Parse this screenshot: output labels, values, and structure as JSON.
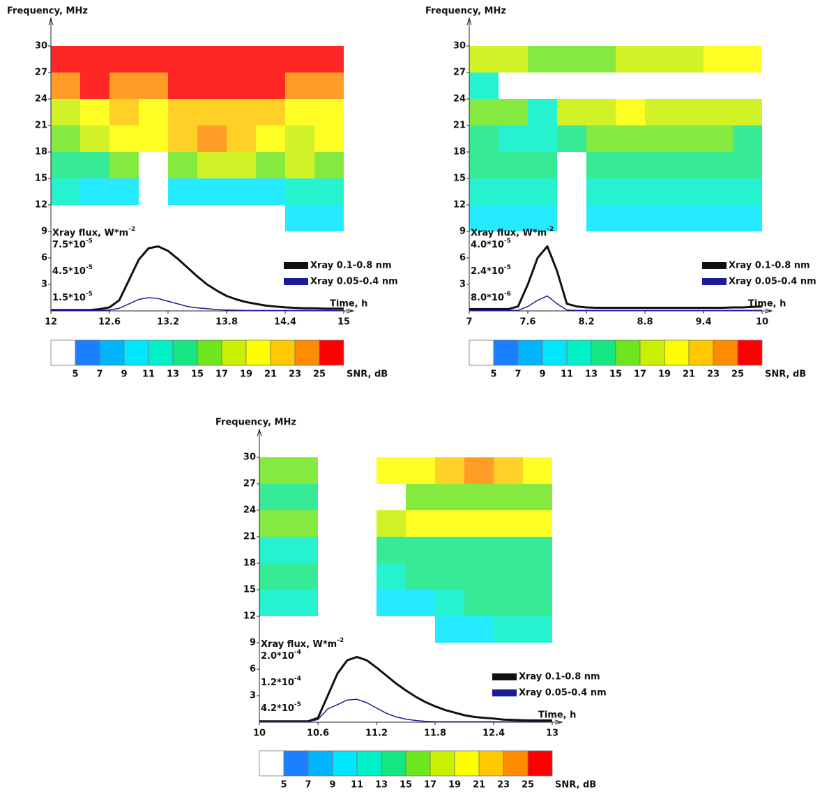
{
  "chart_data": [
    {
      "type": "spectrogram",
      "y_label": "Frequency, MHz",
      "x_label": "Time, h",
      "flux_label": "Xray flux, W*m",
      "flux_label_exponent": "-2",
      "xlim": [
        12,
        15
      ],
      "xticks": [
        12,
        12.6,
        13.2,
        13.8,
        14.4,
        15
      ],
      "ylim": [
        0,
        30
      ],
      "yticks": [
        3,
        6,
        9,
        12,
        15,
        18,
        21,
        24,
        27,
        30
      ],
      "y2lim": [
        0,
        0.0003
      ],
      "y2ticks": [
        {
          "value": 7.5e-05,
          "label": "7.5*10",
          "exponent": "-5"
        },
        {
          "value": 4.5e-05,
          "label": "4.5*10",
          "exponent": "-5"
        },
        {
          "value": 1.5e-05,
          "label": "1.5*10",
          "exponent": "-5"
        }
      ],
      "time_bins": [
        12,
        12.3,
        12.6,
        12.9,
        13.2,
        13.5,
        13.8,
        14.1,
        14.4,
        14.7,
        15
      ],
      "freq_bins": [
        9,
        12,
        15,
        18,
        21,
        24,
        27,
        30
      ],
      "z": [
        [
          null,
          null,
          null,
          null,
          null,
          null,
          null,
          null,
          9,
          9
        ],
        [
          11,
          9,
          9,
          null,
          9,
          9,
          9,
          9,
          11,
          11
        ],
        [
          13,
          13,
          15,
          null,
          15,
          17,
          17,
          15,
          17,
          15
        ],
        [
          15,
          17,
          19,
          19,
          21,
          23,
          21,
          19,
          17,
          19
        ],
        [
          17,
          19,
          21,
          19,
          21,
          21,
          21,
          21,
          19,
          19
        ],
        [
          23,
          25,
          23,
          23,
          25,
          25,
          25,
          25,
          23,
          23
        ],
        [
          25,
          25,
          25,
          25,
          25,
          25,
          25,
          25,
          25,
          25
        ]
      ],
      "x": [
        12,
        12.1,
        12.2,
        12.3,
        12.4,
        12.5,
        12.6,
        12.7,
        12.8,
        12.9,
        13,
        13.1,
        13.2,
        13.3,
        13.4,
        13.5,
        13.6,
        13.7,
        13.8,
        13.9,
        14,
        14.1,
        14.2,
        14.3,
        14.4,
        14.5,
        14.6,
        14.7,
        14.8,
        14.9,
        15
      ],
      "series": [
        {
          "name": "Xray 0.1-0.8 nm",
          "color": "#111111",
          "axis": "y2",
          "values": [
            1e-06,
            1e-06,
            1e-06,
            1e-06,
            1e-06,
            2e-06,
            4e-06,
            1.2e-05,
            3.5e-05,
            5.8e-05,
            7.1e-05,
            7.3e-05,
            6.8e-05,
            5.9e-05,
            4.9e-05,
            3.9e-05,
            3e-05,
            2.3e-05,
            1.7e-05,
            1.3e-05,
            1e-05,
            8e-06,
            6e-06,
            5e-06,
            4e-06,
            3.5e-06,
            3e-06,
            3e-06,
            2.5e-06,
            2.5e-06,
            2.5e-06
          ]
        },
        {
          "name": "Xray 0.05-0.4 nm",
          "color": "#1c1c96",
          "axis": "y2",
          "values": [
            5e-07,
            5e-07,
            5e-07,
            5e-07,
            5e-07,
            5e-07,
            1e-06,
            3e-06,
            8e-06,
            1.3e-05,
            1.5e-05,
            1.4e-05,
            1.1e-05,
            8e-06,
            5e-06,
            3.5e-06,
            2.5e-06,
            1.5e-06,
            1e-06,
            8e-07,
            5e-07,
            5e-07,
            5e-07,
            5e-07,
            5e-07,
            5e-07,
            5e-07,
            5e-07,
            5e-07,
            5e-07,
            5e-07
          ]
        }
      ],
      "colorbar_levels": [
        5,
        7,
        9,
        11,
        13,
        15,
        17,
        19,
        21,
        23,
        25
      ],
      "colorbar_colors": [
        "#ffffff",
        "#1a80ff",
        "#00b4ff",
        "#00e6ff",
        "#00f0c8",
        "#14e682",
        "#6ee61e",
        "#c8f000",
        "#ffff00",
        "#ffc800",
        "#ff8c00",
        "#ff0000"
      ],
      "colorbar_label": "SNR, dB"
    },
    {
      "type": "spectrogram",
      "y_label": "Frequency, MHz",
      "x_label": "Time, h",
      "flux_label": "Xray flux, W*m",
      "flux_label_exponent": "-2",
      "xlim": [
        7,
        10
      ],
      "xticks": [
        7,
        7.6,
        8.2,
        8.8,
        9.4,
        10
      ],
      "ylim": [
        0,
        30
      ],
      "yticks": [
        3,
        6,
        9,
        12,
        15,
        18,
        21,
        24,
        27,
        30
      ],
      "y2lim": [
        0,
        0.00016
      ],
      "y2ticks": [
        {
          "value": 4e-05,
          "label": "4.0*10",
          "exponent": "-5"
        },
        {
          "value": 2.4e-05,
          "label": "2.4*10",
          "exponent": "-5"
        },
        {
          "value": 8e-06,
          "label": "8.0*10",
          "exponent": "-6"
        }
      ],
      "time_bins": [
        7,
        7.3,
        7.6,
        7.9,
        8.2,
        8.5,
        8.8,
        9.1,
        9.4,
        9.7,
        10
      ],
      "freq_bins": [
        9,
        12,
        15,
        18,
        21,
        24,
        27,
        30
      ],
      "z": [
        [
          9,
          9,
          9,
          null,
          9,
          9,
          9,
          9,
          9,
          9
        ],
        [
          11,
          11,
          11,
          null,
          11,
          11,
          11,
          11,
          11,
          11
        ],
        [
          13,
          13,
          13,
          null,
          13,
          13,
          13,
          13,
          13,
          13
        ],
        [
          13,
          11,
          11,
          13,
          15,
          15,
          15,
          15,
          15,
          13
        ],
        [
          15,
          15,
          11,
          17,
          17,
          19,
          17,
          17,
          17,
          17
        ],
        [
          11,
          null,
          null,
          null,
          null,
          null,
          null,
          null,
          null,
          null
        ],
        [
          17,
          17,
          15,
          15,
          15,
          17,
          17,
          17,
          19,
          19
        ]
      ],
      "x": [
        7,
        7.1,
        7.2,
        7.3,
        7.4,
        7.5,
        7.6,
        7.7,
        7.8,
        7.9,
        8,
        8.1,
        8.2,
        8.3,
        8.4,
        8.5,
        8.6,
        8.7,
        8.8,
        8.9,
        9,
        9.1,
        9.2,
        9.3,
        9.4,
        9.5,
        9.6,
        9.7,
        9.8,
        9.9,
        10
      ],
      "series": [
        {
          "name": "Xray 0.1-0.8 nm",
          "color": "#111111",
          "axis": "y2",
          "values": [
            1.1e-06,
            1.1e-06,
            1.1e-06,
            1.1e-06,
            1.1e-06,
            2.7e-06,
            1.6e-05,
            3.2e-05,
            3.9e-05,
            2.4e-05,
            4.3e-06,
            2.7e-06,
            2.1e-06,
            1.9e-06,
            1.9e-06,
            1.9e-06,
            1.9e-06,
            1.9e-06,
            1.9e-06,
            1.9e-06,
            1.9e-06,
            1.9e-06,
            1.9e-06,
            1.9e-06,
            1.9e-06,
            1.9e-06,
            1.9e-06,
            2.1e-06,
            2.1e-06,
            2.4e-06,
            2.7e-06
          ]
        },
        {
          "name": "Xray 0.05-0.4 nm",
          "color": "#1c1c96",
          "axis": "y2",
          "values": [
            3e-07,
            3e-07,
            3e-07,
            3e-07,
            3e-07,
            3e-07,
            2.7e-06,
            6.4e-06,
            9e-06,
            4.3e-06,
            5e-07,
            3e-07,
            3e-07,
            3e-07,
            3e-07,
            3e-07,
            3e-07,
            3e-07,
            3e-07,
            3e-07,
            3e-07,
            3e-07,
            3e-07,
            3e-07,
            3e-07,
            3e-07,
            3e-07,
            3e-07,
            3e-07,
            3e-07,
            3e-07
          ]
        }
      ],
      "colorbar_levels": [
        5,
        7,
        9,
        11,
        13,
        15,
        17,
        19,
        21,
        23,
        25
      ],
      "colorbar_colors": [
        "#ffffff",
        "#1a80ff",
        "#00b4ff",
        "#00e6ff",
        "#00f0c8",
        "#14e682",
        "#6ee61e",
        "#c8f000",
        "#ffff00",
        "#ffc800",
        "#ff8c00",
        "#ff0000"
      ],
      "colorbar_label": "SNR, dB"
    },
    {
      "type": "spectrogram",
      "y_label": "Frequency, MHz",
      "x_label": "Time, h",
      "flux_label": "Xray flux, W*m",
      "flux_label_exponent": "-2",
      "xlim": [
        10,
        13
      ],
      "xticks": [
        10,
        10.6,
        11.2,
        11.8,
        12.4,
        13
      ],
      "ylim": [
        0,
        30
      ],
      "yticks": [
        3,
        6,
        9,
        12,
        15,
        18,
        21,
        24,
        27,
        30
      ],
      "y2lim": [
        0,
        0.0008
      ],
      "y2ticks": [
        {
          "value": 0.0002,
          "label": "2.0*10",
          "exponent": "-4"
        },
        {
          "value": 0.00012,
          "label": "1.2*10",
          "exponent": "-4"
        },
        {
          "value": 4.2e-05,
          "label": "4.2*10",
          "exponent": "-5"
        }
      ],
      "time_bins": [
        10,
        10.3,
        10.6,
        10.9,
        11.2,
        11.5,
        11.8,
        12.1,
        12.4,
        12.7,
        13
      ],
      "freq_bins": [
        9,
        12,
        15,
        18,
        21,
        24,
        27,
        30
      ],
      "z": [
        [
          null,
          null,
          null,
          null,
          null,
          null,
          9,
          9,
          11,
          11
        ],
        [
          11,
          11,
          null,
          null,
          9,
          9,
          11,
          13,
          13,
          13
        ],
        [
          13,
          13,
          null,
          null,
          11,
          13,
          13,
          13,
          13,
          13
        ],
        [
          11,
          11,
          null,
          null,
          13,
          13,
          13,
          13,
          13,
          13
        ],
        [
          15,
          15,
          null,
          null,
          17,
          19,
          19,
          19,
          19,
          19
        ],
        [
          13,
          13,
          null,
          null,
          null,
          15,
          15,
          15,
          15,
          15
        ],
        [
          15,
          15,
          null,
          null,
          19,
          19,
          21,
          23,
          21,
          19
        ]
      ],
      "x": [
        10,
        10.1,
        10.2,
        10.3,
        10.4,
        10.5,
        10.6,
        10.7,
        10.8,
        10.9,
        11,
        11.1,
        11.2,
        11.3,
        11.4,
        11.5,
        11.6,
        11.7,
        11.8,
        11.9,
        12,
        12.1,
        12.2,
        12.3,
        12.4,
        12.5,
        12.6,
        12.7,
        12.8,
        12.9,
        13
      ],
      "series": [
        {
          "name": "Xray 0.1-0.8 nm",
          "color": "#111111",
          "axis": "y2",
          "values": [
            2.7e-06,
            2.7e-06,
            2.7e-06,
            2.7e-06,
            2.7e-06,
            2.7e-06,
            1.3e-05,
            8e-05,
            0.000147,
            0.000187,
            0.000197,
            0.000187,
            0.000165,
            0.000141,
            0.000117,
            9.6e-05,
            7.7e-05,
            6.1e-05,
            4.8e-05,
            3.7e-05,
            2.9e-05,
            2.1e-05,
            1.6e-05,
            1.3e-05,
            1.1e-05,
            8e-06,
            6.7e-06,
            6e-06,
            5.3e-06,
            5.3e-06,
            5.3e-06
          ]
        },
        {
          "name": "Xray 0.05-0.4 nm",
          "color": "#1c1c96",
          "axis": "y2",
          "values": [
            1.3e-06,
            1.3e-06,
            1.3e-06,
            1.3e-06,
            1.3e-06,
            1.3e-06,
            8e-06,
            4e-05,
            5.3e-05,
            6.7e-05,
            6.9e-05,
            5.9e-05,
            4.3e-05,
            2.7e-05,
            1.6e-05,
            9.3e-06,
            5.3e-06,
            2.7e-06,
            1.3e-06,
            1.3e-06,
            1.3e-06,
            1.3e-06,
            1.3e-06,
            1.3e-06,
            1.3e-06,
            1.3e-06,
            1.3e-06,
            1.3e-06,
            1.3e-06,
            1.3e-06,
            1.3e-06
          ]
        }
      ],
      "colorbar_levels": [
        5,
        7,
        9,
        11,
        13,
        15,
        17,
        19,
        21,
        23,
        25
      ],
      "colorbar_colors": [
        "#ffffff",
        "#1a80ff",
        "#00b4ff",
        "#00e6ff",
        "#00f0c8",
        "#14e682",
        "#6ee61e",
        "#c8f000",
        "#ffff00",
        "#ffc800",
        "#ff8c00",
        "#ff0000"
      ],
      "colorbar_label": "SNR, dB"
    }
  ]
}
